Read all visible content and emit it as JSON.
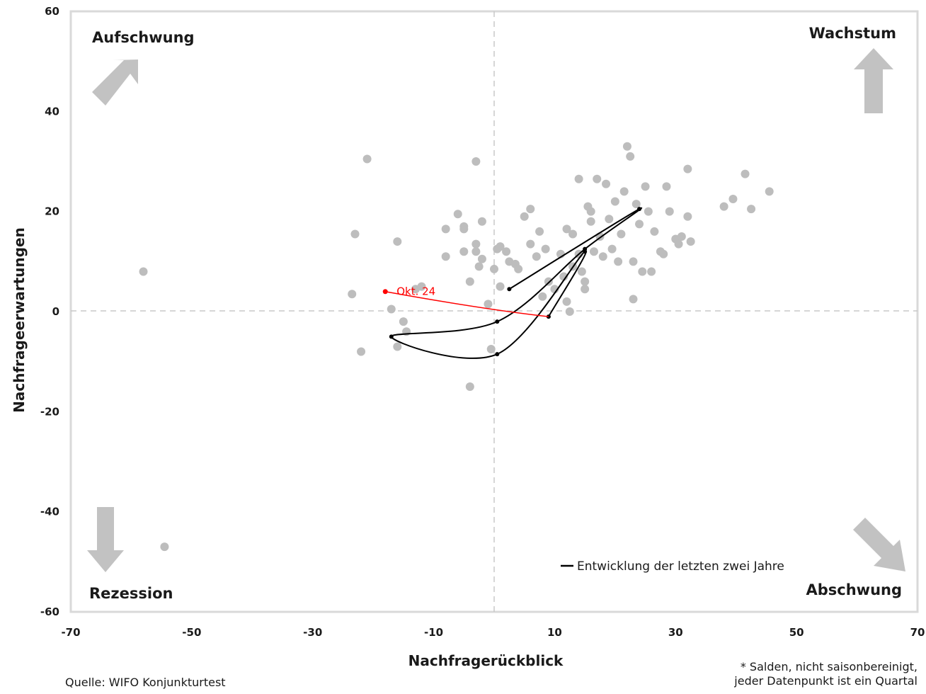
{
  "chart_data": {
    "type": "scatter",
    "xlabel": "Nachfragerückblick",
    "ylabel": "Nachfrageerwartungen",
    "xlim": [
      -70,
      70
    ],
    "ylim": [
      -60,
      60
    ],
    "xticks": [
      -70,
      -50,
      -30,
      -10,
      10,
      30,
      50,
      70
    ],
    "yticks": [
      -60,
      -40,
      -20,
      0,
      20,
      40,
      60
    ],
    "grid": false,
    "reference_lines": {
      "x": 0,
      "y": 0,
      "style": "dashed"
    },
    "quadrants": {
      "top_left": "Aufschwung",
      "top_right": "Wachstum",
      "bottom_left": "Rezession",
      "bottom_right": "Abschwung"
    },
    "colors": {
      "history": "#bdbdbd",
      "recent": "#000000",
      "latest": "#ff0000",
      "arrows": "#c2c2c2",
      "frame": "#d9d9d9"
    },
    "series": [
      {
        "kind": "history",
        "points": [
          [
            -58,
            8
          ],
          [
            -54.5,
            -47
          ],
          [
            -21,
            30.5
          ],
          [
            -22,
            -8
          ],
          [
            -23,
            15.5
          ],
          [
            -23.5,
            3.5
          ],
          [
            -16,
            14
          ],
          [
            -17,
            0.5
          ],
          [
            -16,
            -7
          ],
          [
            -15,
            -2
          ],
          [
            -14.5,
            -4
          ],
          [
            -13,
            4.5
          ],
          [
            -12,
            5
          ],
          [
            -8,
            16.5
          ],
          [
            -8,
            11
          ],
          [
            -6,
            19.5
          ],
          [
            -5,
            16.5
          ],
          [
            -5,
            17
          ],
          [
            -5,
            12
          ],
          [
            -4,
            6
          ],
          [
            -4,
            -15
          ],
          [
            -3,
            30
          ],
          [
            -3,
            13.5
          ],
          [
            -3,
            12
          ],
          [
            -2.5,
            9
          ],
          [
            -2,
            10.5
          ],
          [
            -2,
            18
          ],
          [
            -1,
            1.5
          ],
          [
            -0.5,
            -7.5
          ],
          [
            0,
            8.5
          ],
          [
            0.5,
            12.5
          ],
          [
            1,
            13
          ],
          [
            1,
            5
          ],
          [
            2,
            12
          ],
          [
            2.5,
            10
          ],
          [
            3.5,
            9.5
          ],
          [
            4,
            8.5
          ],
          [
            5,
            19
          ],
          [
            6,
            13.5
          ],
          [
            6,
            20.5
          ],
          [
            7,
            11
          ],
          [
            7.5,
            16
          ],
          [
            8,
            3
          ],
          [
            8.5,
            12.5
          ],
          [
            9,
            6
          ],
          [
            10,
            4.5
          ],
          [
            11,
            11.5
          ],
          [
            11.5,
            7
          ],
          [
            12,
            16.5
          ],
          [
            12,
            2
          ],
          [
            12.5,
            0
          ],
          [
            13,
            9
          ],
          [
            13,
            15.5
          ],
          [
            14,
            26.5
          ],
          [
            14,
            11.5
          ],
          [
            14.5,
            8
          ],
          [
            15,
            6
          ],
          [
            15,
            4.5
          ],
          [
            15.5,
            21
          ],
          [
            16,
            20
          ],
          [
            16,
            18
          ],
          [
            16.5,
            12
          ],
          [
            17,
            26.5
          ],
          [
            17.5,
            15
          ],
          [
            18,
            11
          ],
          [
            18.5,
            25.5
          ],
          [
            19,
            18.5
          ],
          [
            19.5,
            12.5
          ],
          [
            20,
            22
          ],
          [
            20.5,
            10
          ],
          [
            21,
            15.5
          ],
          [
            21.5,
            24
          ],
          [
            22,
            33
          ],
          [
            22.5,
            31
          ],
          [
            23,
            10
          ],
          [
            23,
            2.5
          ],
          [
            23.5,
            21.5
          ],
          [
            24,
            17.5
          ],
          [
            24.5,
            8
          ],
          [
            25,
            25
          ],
          [
            25.5,
            20
          ],
          [
            26,
            8
          ],
          [
            26.5,
            16
          ],
          [
            27.5,
            12
          ],
          [
            28,
            11.5
          ],
          [
            28.5,
            25
          ],
          [
            29,
            20
          ],
          [
            30,
            14.5
          ],
          [
            30.5,
            13.5
          ],
          [
            31,
            15
          ],
          [
            32,
            19
          ],
          [
            32,
            28.5
          ],
          [
            32.5,
            14
          ],
          [
            38,
            21
          ],
          [
            39.5,
            22.5
          ],
          [
            41.5,
            27.5
          ],
          [
            42.5,
            20.5
          ],
          [
            45.5,
            24
          ]
        ]
      },
      {
        "kind": "recent",
        "name": "Entwicklung der letzten zwei Jahre",
        "points": [
          [
            2.5,
            4.5
          ],
          [
            24,
            20.5
          ],
          [
            15,
            12.5
          ],
          [
            0.5,
            -2
          ],
          [
            -17,
            -5
          ],
          [
            0.5,
            -8.5
          ],
          [
            15,
            12
          ],
          [
            9,
            -1
          ]
        ]
      },
      {
        "kind": "latest",
        "label": "Okt. 24",
        "from": [
          9,
          -1
        ],
        "to": [
          -18,
          4
        ]
      }
    ]
  },
  "legend": {
    "label": "Entwicklung der letzten zwei Jahre",
    "position": "bottom-right"
  },
  "latest_label": "Okt. 24",
  "source": "Quelle: WIFO Konjunkturtest",
  "note_line1": "* Salden, nicht saisonbereinigt,",
  "note_line2": "jeder Datenpunkt ist ein Quartal"
}
